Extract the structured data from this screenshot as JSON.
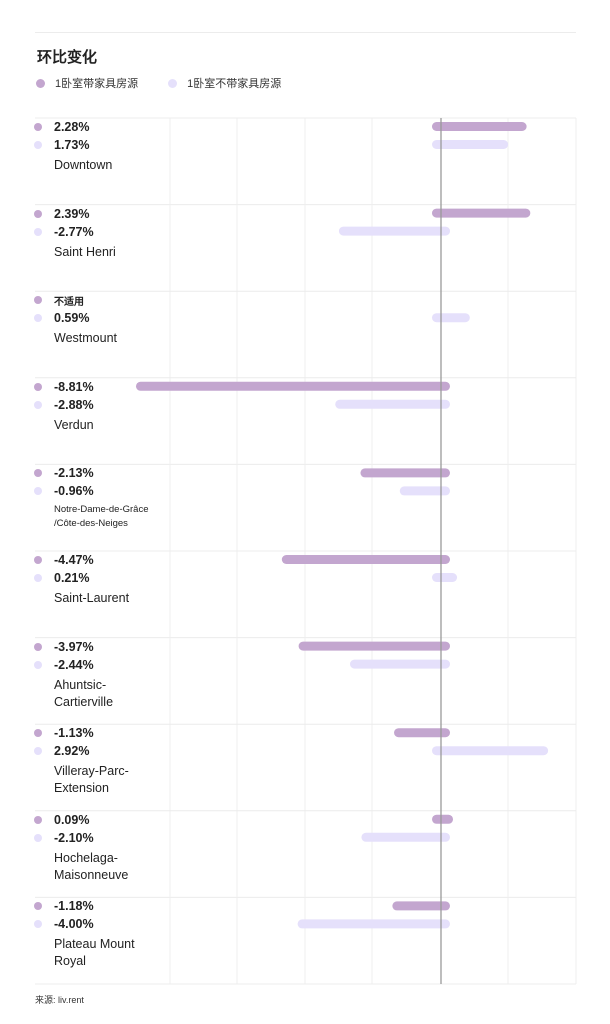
{
  "chart_data": {
    "type": "bar",
    "orientation": "horizontal",
    "title": "环比变化",
    "source": "来源: liv.rent",
    "xlim": [
      -10.0,
      5.0
    ],
    "series": [
      {
        "name": "1卧室带家具房源",
        "color": "#c3a6cf"
      },
      {
        "name": "1卧室不带家具房源",
        "color": "#e5e0fb"
      }
    ],
    "categories": [
      {
        "name_lines": [
          "Downtown"
        ],
        "values": [
          2.28,
          1.73
        ],
        "labels": [
          "2.28%",
          "1.73%"
        ]
      },
      {
        "name_lines": [
          "Saint Henri"
        ],
        "values": [
          2.39,
          -2.77
        ],
        "labels": [
          "2.39%",
          "-2.77%"
        ]
      },
      {
        "name_lines": [
          "Westmount"
        ],
        "values": [
          null,
          0.59
        ],
        "labels": [
          "不适用",
          "0.59%"
        ]
      },
      {
        "name_lines": [
          "Verdun"
        ],
        "values": [
          -8.81,
          -2.88
        ],
        "labels": [
          "-8.81%",
          "-2.88%"
        ]
      },
      {
        "name_lines": [
          "Notre-Dame-de-Grâce",
          "/Côte-des-Neiges"
        ],
        "values": [
          -2.13,
          -0.96
        ],
        "labels": [
          "-2.13%",
          "-0.96%"
        ]
      },
      {
        "name_lines": [
          "Saint-Laurent"
        ],
        "values": [
          -4.47,
          0.21
        ],
        "labels": [
          "-4.47%",
          "0.21%"
        ]
      },
      {
        "name_lines": [
          "Ahuntsic-",
          "Cartierville"
        ],
        "values": [
          -3.97,
          -2.44
        ],
        "labels": [
          "-3.97%",
          "-2.44%"
        ]
      },
      {
        "name_lines": [
          "Villeray-Parc-",
          "Extension"
        ],
        "values": [
          -1.13,
          2.92
        ],
        "labels": [
          "-1.13%",
          "2.92%"
        ]
      },
      {
        "name_lines": [
          "Hochelaga-",
          "Maisonneuve"
        ],
        "values": [
          0.09,
          -2.1
        ],
        "labels": [
          "0.09%",
          "-2.10%"
        ]
      },
      {
        "name_lines": [
          "Plateau Mount",
          "Royal"
        ],
        "values": [
          -1.18,
          -4.0
        ],
        "labels": [
          "-1.18%",
          "-4.00%"
        ]
      }
    ]
  }
}
